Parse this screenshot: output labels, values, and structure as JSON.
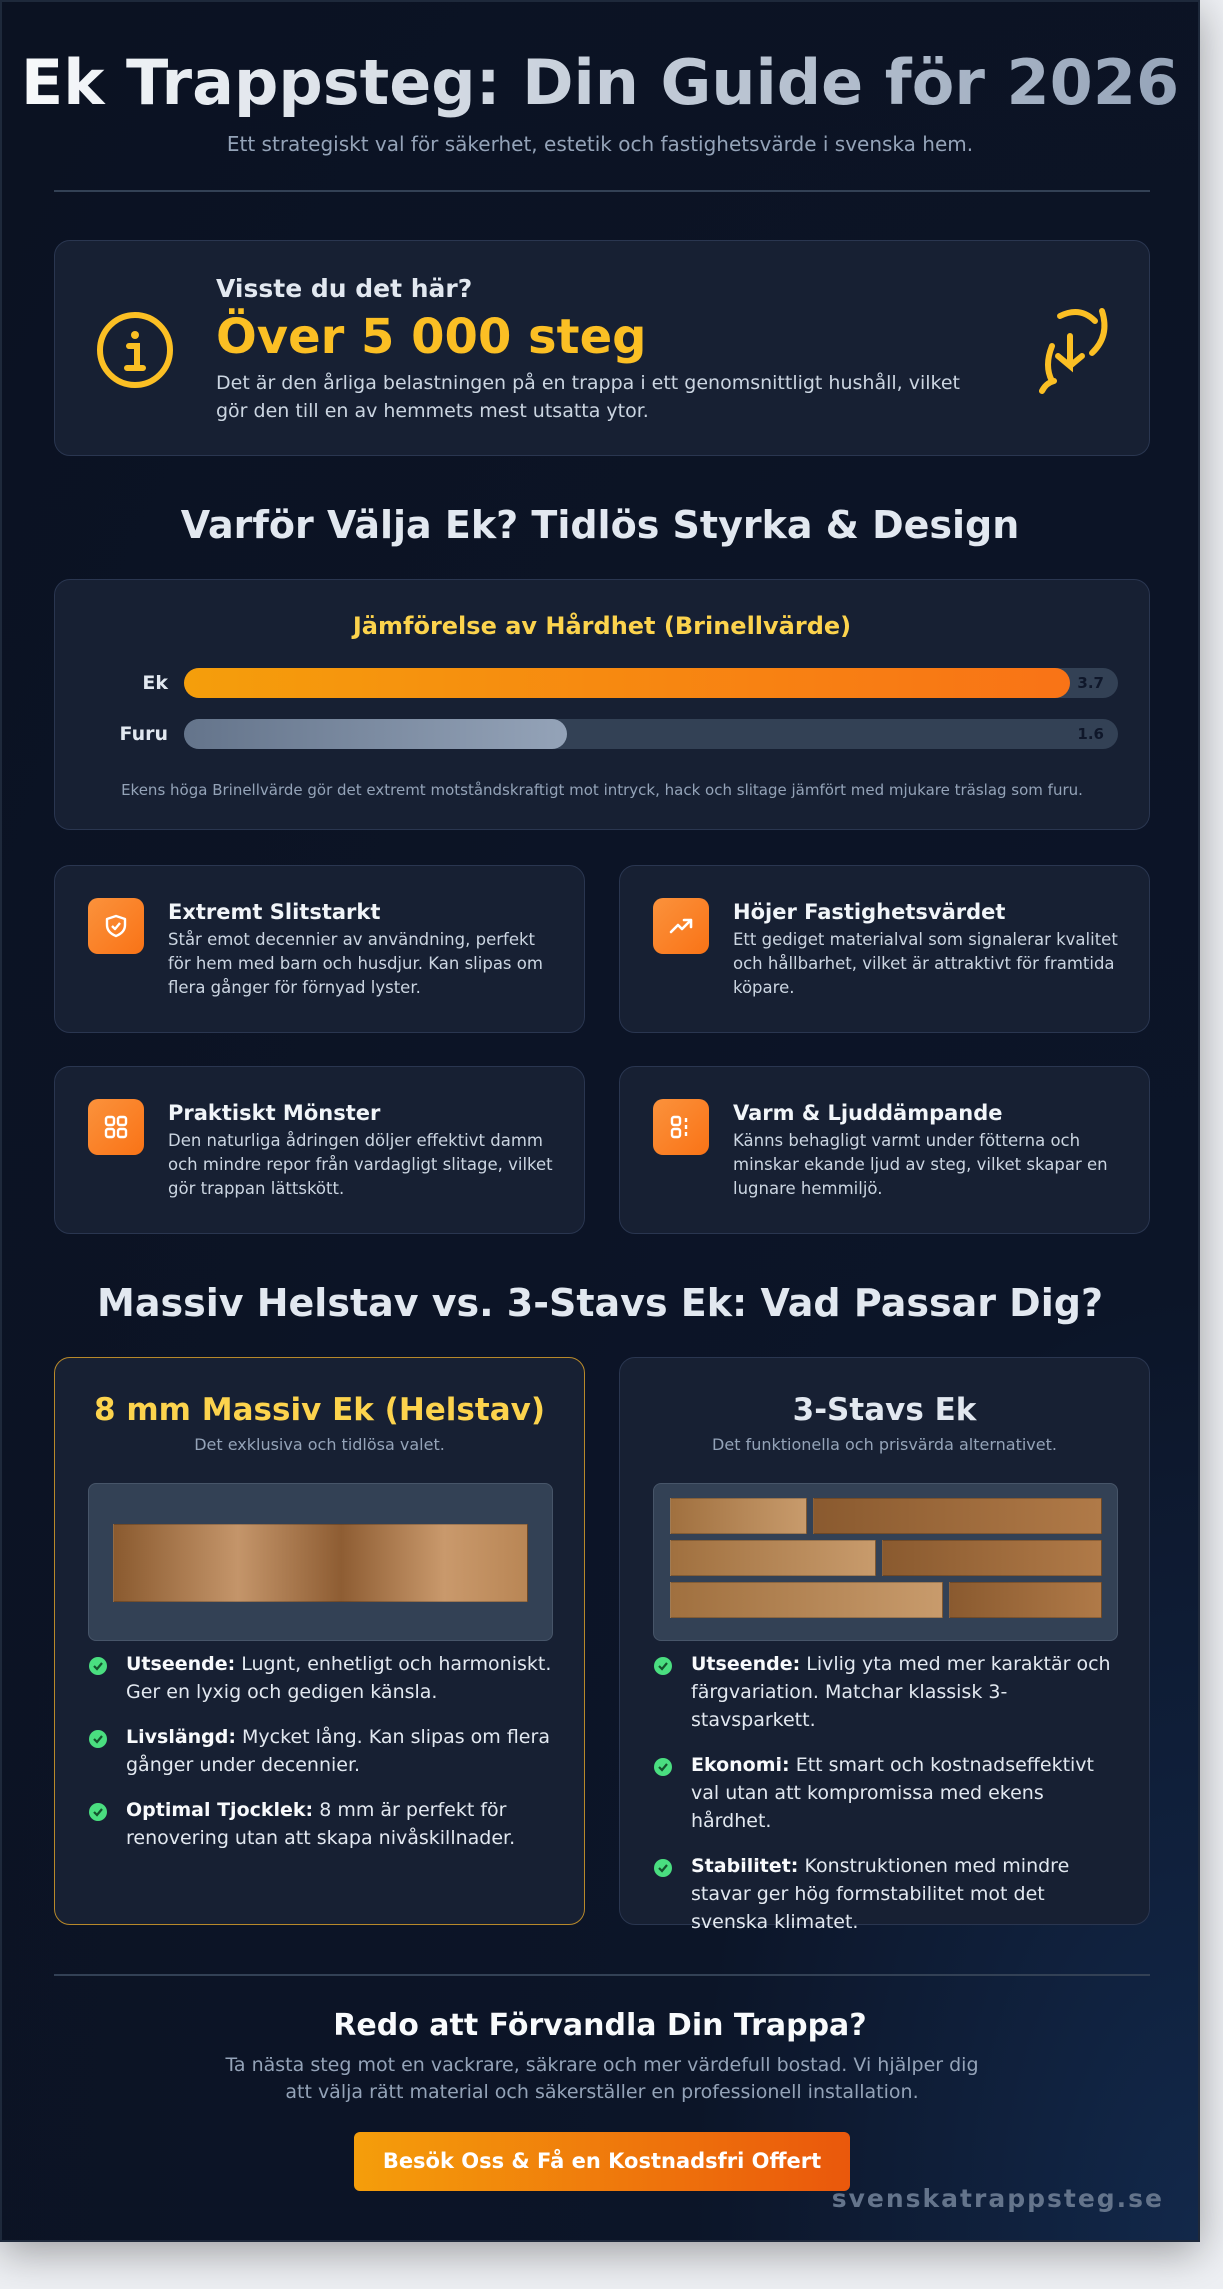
{
  "header": {
    "title": "Ek Trappsteg: Din Guide för 2026",
    "subtitle": "Ett strategiskt val för säkerhet, estetik och fastighetsvärde i svenska hem."
  },
  "fact": {
    "kicker": "Visste du det här?",
    "headline": "Över 5 000 steg",
    "text": "Det är den årliga belastningen på en trappa i ett genomsnittligt hushåll, vilket gör den till en av hemmets mest utsatta ytor."
  },
  "why": {
    "heading": "Varför Välja Ek? Tidlös Styrka & Design"
  },
  "chart_data": {
    "type": "bar",
    "orientation": "horizontal",
    "title": "Jämförelse av Hårdhet (Brinellvärde)",
    "categories": [
      "Ek",
      "Furu"
    ],
    "values": [
      3.7,
      1.6
    ],
    "xlim": [
      0,
      3.9
    ],
    "colors": [
      [
        "#f59e0b",
        "#f97316"
      ],
      [
        "#64748b",
        "#94a3b8"
      ]
    ],
    "note": "Ekens höga Brinellvärde gör det extremt motståndskraftigt mot intryck, hack och slitage jämfört med mjukare träslag som furu."
  },
  "features": [
    {
      "title": "Extremt Slitstarkt",
      "text": "Står emot decennier av användning, perfekt för hem med barn och husdjur. Kan slipas om flera gånger för förnyad lyster."
    },
    {
      "title": "Höjer Fastighetsvärdet",
      "text": "Ett gediget materialval som signalerar kvalitet och hållbarhet, vilket är attraktivt för framtida köpare."
    },
    {
      "title": "Praktiskt Mönster",
      "text": "Den naturliga ådringen döljer effektivt damm och mindre repor från vardagligt slitage, vilket gör trappan lättskött."
    },
    {
      "title": "Varm & Ljuddämpande",
      "text": "Känns behagligt varmt under fötterna och minskar ekande ljud av steg, vilket skapar en lugnare hemmiljö."
    }
  ],
  "comparison": {
    "heading": "Massiv Helstav vs. 3-Stavs Ek: Vad Passar Dig?",
    "options": [
      {
        "title": "8 mm Massiv Ek (Helstav)",
        "subtitle": "Det exklusiva och tidlösa valet.",
        "points": [
          {
            "label": "Utseende:",
            "text": "Lugnt, enhetligt och harmoniskt. Ger en lyxig och gedigen känsla."
          },
          {
            "label": "Livslängd:",
            "text": "Mycket lång. Kan slipas om flera gånger under decennier."
          },
          {
            "label": "Optimal Tjocklek:",
            "text": "8 mm är perfekt för renovering utan att skapa nivåskillnader."
          }
        ]
      },
      {
        "title": "3-Stavs Ek",
        "subtitle": "Det funktionella och prisvärda alternativet.",
        "points": [
          {
            "label": "Utseende:",
            "text": "Livlig yta med mer karaktär och färgvariation. Matchar klassisk 3-stavsparkett."
          },
          {
            "label": "Ekonomi:",
            "text": "Ett smart och kostnadseffektivt val utan att kompromissa med ekens hårdhet."
          },
          {
            "label": "Stabilitet:",
            "text": "Konstruktionen med mindre stavar ger hög formstabilitet mot det svenska klimatet."
          }
        ]
      }
    ]
  },
  "cta": {
    "heading": "Redo att Förvandla Din Trappa?",
    "text": "Ta nästa steg mot en vackrare, säkrare och mer värdefull bostad. Vi hjälper dig att välja rätt material och säkerställer en professionell installation.",
    "button": "Besök Oss & Få en Kostnadsfri Offert"
  },
  "footer": {
    "site": "svenskatrappsteg.se"
  }
}
